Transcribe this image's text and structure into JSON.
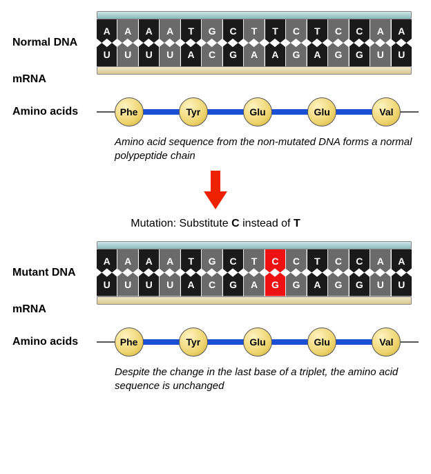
{
  "normal": {
    "dnaLabel": "Normal DNA",
    "mrnaLabel": "mRNA",
    "aaLabel": "Amino acids",
    "dnaBases": [
      {
        "l": "A",
        "c": "dark"
      },
      {
        "l": "A",
        "c": "gray"
      },
      {
        "l": "A",
        "c": "dark"
      },
      {
        "l": "A",
        "c": "gray"
      },
      {
        "l": "T",
        "c": "dark"
      },
      {
        "l": "G",
        "c": "gray"
      },
      {
        "l": "C",
        "c": "dark"
      },
      {
        "l": "T",
        "c": "gray"
      },
      {
        "l": "T",
        "c": "dark"
      },
      {
        "l": "C",
        "c": "gray"
      },
      {
        "l": "T",
        "c": "dark"
      },
      {
        "l": "C",
        "c": "gray"
      },
      {
        "l": "C",
        "c": "dark"
      },
      {
        "l": "A",
        "c": "gray"
      },
      {
        "l": "A",
        "c": "dark"
      }
    ],
    "rnaBases": [
      {
        "l": "U",
        "c": "dark"
      },
      {
        "l": "U",
        "c": "gray"
      },
      {
        "l": "U",
        "c": "dark"
      },
      {
        "l": "U",
        "c": "gray"
      },
      {
        "l": "A",
        "c": "dark"
      },
      {
        "l": "C",
        "c": "gray"
      },
      {
        "l": "G",
        "c": "dark"
      },
      {
        "l": "A",
        "c": "gray"
      },
      {
        "l": "A",
        "c": "dark"
      },
      {
        "l": "G",
        "c": "gray"
      },
      {
        "l": "A",
        "c": "dark"
      },
      {
        "l": "G",
        "c": "gray"
      },
      {
        "l": "G",
        "c": "dark"
      },
      {
        "l": "U",
        "c": "gray"
      },
      {
        "l": "U",
        "c": "dark"
      }
    ],
    "aminoAcids": [
      "Phe",
      "Tyr",
      "Glu",
      "Glu",
      "Val"
    ],
    "caption": "Amino acid sequence from the non-mutated DNA forms a normal polypeptide chain"
  },
  "mutationText": {
    "pre": "Mutation:  Substitute ",
    "b1": "C",
    "mid": " instead of ",
    "b2": "T"
  },
  "mutant": {
    "dnaLabel": "Mutant DNA",
    "mrnaLabel": "mRNA",
    "aaLabel": "Amino acids",
    "dnaBases": [
      {
        "l": "A",
        "c": "dark"
      },
      {
        "l": "A",
        "c": "gray"
      },
      {
        "l": "A",
        "c": "dark"
      },
      {
        "l": "A",
        "c": "gray"
      },
      {
        "l": "T",
        "c": "dark"
      },
      {
        "l": "G",
        "c": "gray"
      },
      {
        "l": "C",
        "c": "dark"
      },
      {
        "l": "T",
        "c": "gray"
      },
      {
        "l": "C",
        "c": "red"
      },
      {
        "l": "C",
        "c": "gray"
      },
      {
        "l": "T",
        "c": "dark"
      },
      {
        "l": "C",
        "c": "gray"
      },
      {
        "l": "C",
        "c": "dark"
      },
      {
        "l": "A",
        "c": "gray"
      },
      {
        "l": "A",
        "c": "dark"
      }
    ],
    "rnaBases": [
      {
        "l": "U",
        "c": "dark"
      },
      {
        "l": "U",
        "c": "gray"
      },
      {
        "l": "U",
        "c": "dark"
      },
      {
        "l": "U",
        "c": "gray"
      },
      {
        "l": "A",
        "c": "dark"
      },
      {
        "l": "C",
        "c": "gray"
      },
      {
        "l": "G",
        "c": "dark"
      },
      {
        "l": "A",
        "c": "gray"
      },
      {
        "l": "G",
        "c": "red"
      },
      {
        "l": "G",
        "c": "gray"
      },
      {
        "l": "A",
        "c": "dark"
      },
      {
        "l": "G",
        "c": "gray"
      },
      {
        "l": "G",
        "c": "dark"
      },
      {
        "l": "U",
        "c": "gray"
      },
      {
        "l": "U",
        "c": "dark"
      }
    ],
    "aminoAcids": [
      "Phe",
      "Tyr",
      "Glu",
      "Glu",
      "Val"
    ],
    "caption": "Despite the change in the last base of a triplet, the amino acid sequence is unchanged"
  },
  "style": {
    "topBarColor": "#a9cfd1",
    "bottomBarColor": "#e4d7a6",
    "blueLine": "#1a4fd6",
    "arrowColor": "#e20",
    "aaFill": "#efd570"
  }
}
